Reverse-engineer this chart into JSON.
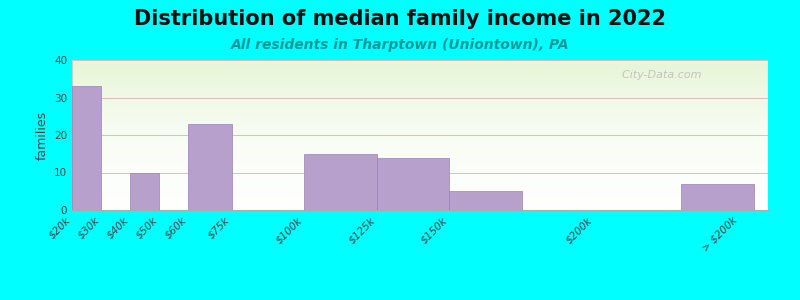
{
  "title": "Distribution of median family income in 2022",
  "subtitle": "All residents in Tharptown (Uniontown), PA",
  "ylabel": "families",
  "background_color": "#00FFFF",
  "bar_color": "#b8a0cc",
  "bar_edge_color": "#9980bb",
  "watermark": "  City-Data.com",
  "categories": [
    "$20k",
    "$30k",
    "$40k",
    "$50k",
    "$60k",
    "$75k",
    "$100k",
    "$125k",
    "$150k",
    "$200k",
    "> $200k"
  ],
  "tick_positions": [
    20,
    30,
    40,
    50,
    60,
    75,
    100,
    125,
    150,
    200,
    250
  ],
  "bar_lefts": [
    20,
    30,
    40,
    50,
    60,
    75,
    100,
    125,
    150,
    200,
    230
  ],
  "bar_widths": [
    10,
    10,
    10,
    10,
    15,
    25,
    25,
    25,
    25,
    25,
    25
  ],
  "bar_heights": [
    33,
    0,
    10,
    0,
    23,
    0,
    15,
    14,
    5,
    0,
    7
  ],
  "xlim": [
    20,
    260
  ],
  "ylim": [
    0,
    40
  ],
  "yticks": [
    0,
    10,
    20,
    30,
    40
  ],
  "title_fontsize": 15,
  "subtitle_fontsize": 10,
  "ylabel_fontsize": 9,
  "tick_fontsize": 7.5
}
